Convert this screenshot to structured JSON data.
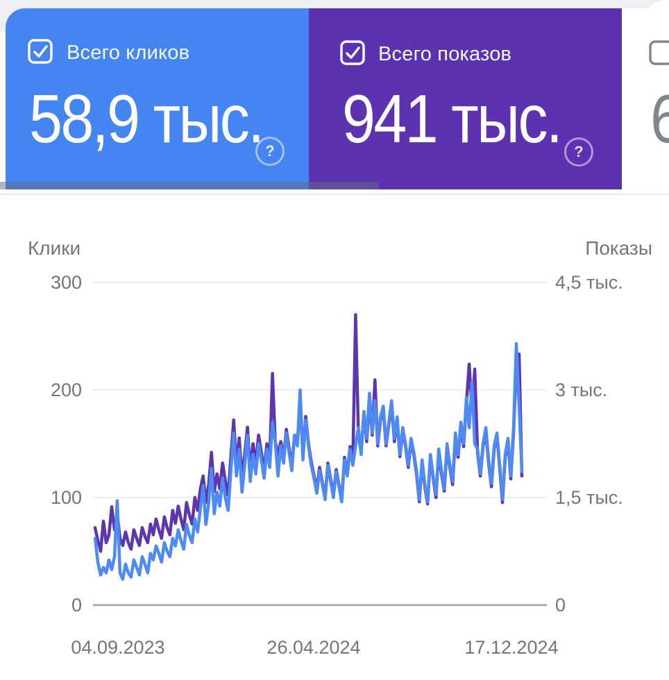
{
  "header_cards": {
    "help_glyph": "?",
    "cards": [
      {
        "label": "Всего кликов",
        "value": "58,9 тыс.",
        "checked": true
      },
      {
        "label": "Всего показов",
        "value": "941 тыс.",
        "checked": true
      },
      {
        "label": "",
        "value": "6",
        "checked": false
      }
    ]
  },
  "chart": {
    "left_axis_title": "Клики",
    "right_axis_title": "Показы",
    "left_ticks": [
      "300",
      "200",
      "100",
      "0"
    ],
    "right_ticks": [
      "4,5 тыс.",
      "3 тыс.",
      "1,5 тыс.",
      "0"
    ],
    "x_ticks": [
      "04.09.2023",
      "26.04.2024",
      "17.12.2024"
    ]
  },
  "chart_data": {
    "type": "line",
    "x_tick_labels": [
      "04.09.2023",
      "26.04.2024",
      "17.12.2024"
    ],
    "grid": "horizontal",
    "legend_position": "none",
    "series": [
      {
        "name": "Клики",
        "axis": "left",
        "unit": "clicks",
        "color": "#4e8af4",
        "ylim": [
          0,
          300
        ],
        "values": [
          62,
          40,
          28,
          35,
          30,
          42,
          33,
          45,
          97,
          30,
          24,
          38,
          30,
          26,
          42,
          35,
          28,
          45,
          38,
          30,
          48,
          42,
          55,
          48,
          40,
          58,
          50,
          45,
          62,
          55,
          70,
          60,
          52,
          75,
          65,
          58,
          80,
          68,
          90,
          111,
          75,
          95,
          127,
          85,
          105,
          92,
          118,
          100,
          88,
          125,
          160,
          120,
          145,
          105,
          130,
          158,
          115,
          140,
          122,
          150,
          135,
          118,
          145,
          128,
          170,
          152,
          120,
          148,
          132,
          160,
          142,
          125,
          158,
          148,
          200,
          135,
          172,
          148,
          130,
          118,
          104,
          125,
          112,
          98,
          130,
          115,
          100,
          124,
          110,
          96,
          135,
          120,
          145,
          130,
          148,
          165,
          140,
          180,
          155,
          197,
          160,
          190,
          150,
          175,
          185,
          150,
          170,
          190,
          155,
          175,
          140,
          165,
          150,
          130,
          155,
          142,
          125,
          98,
          135,
          112,
          96,
          140,
          120,
          103,
          145,
          125,
          108,
          150,
          130,
          115,
          160,
          140,
          170,
          150,
          193,
          165,
          207,
          150,
          145,
          122,
          150,
          165,
          135,
          113,
          148,
          160,
          130,
          98,
          140,
          155,
          120,
          165,
          243,
          185,
          124
        ]
      },
      {
        "name": "Показы",
        "axis": "right",
        "unit": "тыс.",
        "color": "#5e35b1",
        "ylim": [
          0,
          4.5
        ],
        "values": [
          1.08,
          0.9,
          0.75,
          1.17,
          0.87,
          0.98,
          1.37,
          1.05,
          1.28,
          0.93,
          0.83,
          1.02,
          0.87,
          0.78,
          1.05,
          0.93,
          0.83,
          1.08,
          0.96,
          0.87,
          1.13,
          0.98,
          1.2,
          1.05,
          0.93,
          1.23,
          1.08,
          0.98,
          1.32,
          1.14,
          1.38,
          1.2,
          1.05,
          1.43,
          1.26,
          1.13,
          1.5,
          1.32,
          1.62,
          1.8,
          1.43,
          1.68,
          2.13,
          1.58,
          1.83,
          1.62,
          1.98,
          1.73,
          1.53,
          2.07,
          2.58,
          1.95,
          2.33,
          1.77,
          2.1,
          2.48,
          1.88,
          2.25,
          1.98,
          2.37,
          2.13,
          1.88,
          2.25,
          2.0,
          3.23,
          2.28,
          2.1,
          2.28,
          2.04,
          2.45,
          2.19,
          1.95,
          2.37,
          2.25,
          2.85,
          2.07,
          2.63,
          2.25,
          2.0,
          1.8,
          1.62,
          1.92,
          1.71,
          1.5,
          1.98,
          1.76,
          1.53,
          1.89,
          1.68,
          1.47,
          2.06,
          1.83,
          2.21,
          1.98,
          4.05,
          2.4,
          2.13,
          2.67,
          2.28,
          2.85,
          2.37,
          3.14,
          2.22,
          2.58,
          2.73,
          2.22,
          2.52,
          2.79,
          2.28,
          2.58,
          2.07,
          2.43,
          2.22,
          1.92,
          2.28,
          2.1,
          1.83,
          1.44,
          1.98,
          1.65,
          1.41,
          2.07,
          1.77,
          1.5,
          2.13,
          1.83,
          1.59,
          2.21,
          1.92,
          1.68,
          2.34,
          2.06,
          2.49,
          2.21,
          2.82,
          3.36,
          2.7,
          3.29,
          2.13,
          1.8,
          2.21,
          2.43,
          1.98,
          1.65,
          2.18,
          2.36,
          1.91,
          1.43,
          2.06,
          2.28,
          1.76,
          2.4,
          3.35,
          3.5,
          1.8
        ]
      }
    ]
  }
}
